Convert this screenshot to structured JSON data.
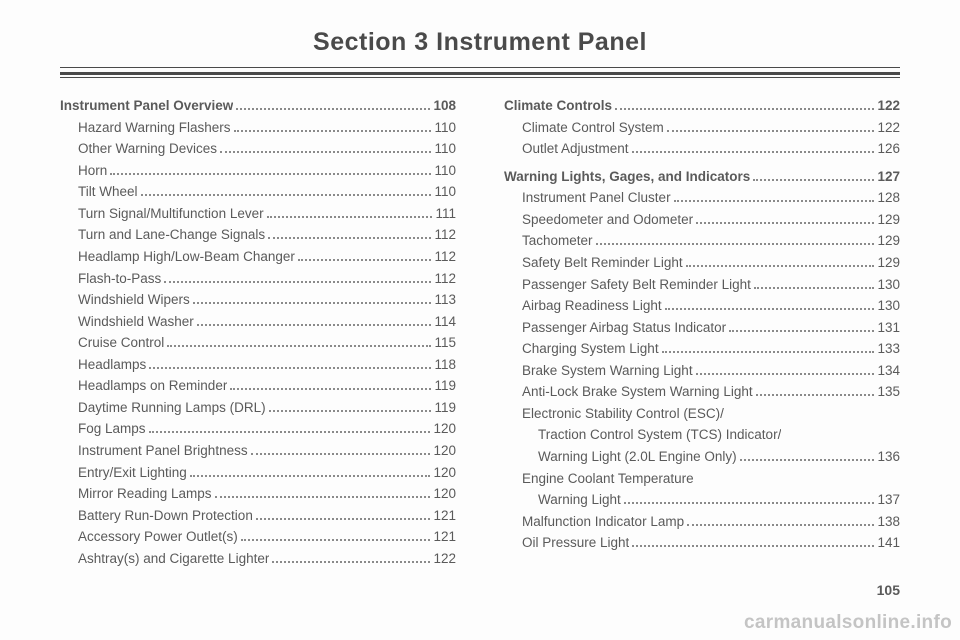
{
  "title": "Section 3    Instrument Panel",
  "pageNumber": "105",
  "watermark": "carmanualsonline.info",
  "left": [
    {
      "label": "Instrument Panel Overview",
      "page": "108",
      "bold": true,
      "indent": 0
    },
    {
      "label": "Hazard Warning Flashers",
      "page": "110",
      "indent": 1
    },
    {
      "label": "Other Warning Devices",
      "page": "110",
      "indent": 1
    },
    {
      "label": "Horn",
      "page": "110",
      "indent": 1
    },
    {
      "label": "Tilt Wheel",
      "page": "110",
      "indent": 1
    },
    {
      "label": "Turn Signal/Multifunction Lever",
      "page": "111",
      "indent": 1
    },
    {
      "label": "Turn and Lane-Change Signals",
      "page": "112",
      "indent": 1
    },
    {
      "label": "Headlamp High/Low-Beam Changer",
      "page": "112",
      "indent": 1
    },
    {
      "label": "Flash-to-Pass",
      "page": "112",
      "indent": 1
    },
    {
      "label": "Windshield Wipers",
      "page": "113",
      "indent": 1
    },
    {
      "label": "Windshield Washer",
      "page": "114",
      "indent": 1
    },
    {
      "label": "Cruise Control",
      "page": "115",
      "indent": 1
    },
    {
      "label": "Headlamps",
      "page": "118",
      "indent": 1
    },
    {
      "label": "Headlamps on Reminder",
      "page": "119",
      "indent": 1
    },
    {
      "label": "Daytime Running Lamps (DRL)",
      "page": "119",
      "indent": 1
    },
    {
      "label": "Fog Lamps",
      "page": "120",
      "indent": 1
    },
    {
      "label": "Instrument Panel Brightness",
      "page": "120",
      "indent": 1
    },
    {
      "label": "Entry/Exit Lighting",
      "page": "120",
      "indent": 1
    },
    {
      "label": "Mirror Reading Lamps",
      "page": "120",
      "indent": 1
    },
    {
      "label": "Battery Run-Down Protection",
      "page": "121",
      "indent": 1
    },
    {
      "label": "Accessory Power Outlet(s)",
      "page": "121",
      "indent": 1
    },
    {
      "label": "Ashtray(s) and Cigarette Lighter",
      "page": "122",
      "indent": 1
    }
  ],
  "right": [
    {
      "label": "Climate Controls",
      "page": "122",
      "bold": true,
      "indent": 0
    },
    {
      "label": "Climate Control System",
      "page": "122",
      "indent": 1
    },
    {
      "label": "Outlet Adjustment",
      "page": "126",
      "indent": 1
    },
    {
      "label": "Warning Lights, Gages, and Indicators",
      "page": "127",
      "bold": true,
      "indent": 0,
      "spaced": true
    },
    {
      "label": "Instrument Panel Cluster",
      "page": "128",
      "indent": 1
    },
    {
      "label": "Speedometer and Odometer",
      "page": "129",
      "indent": 1
    },
    {
      "label": "Tachometer",
      "page": "129",
      "indent": 1
    },
    {
      "label": "Safety Belt Reminder Light",
      "page": "129",
      "indent": 1
    },
    {
      "label": "Passenger Safety Belt Reminder Light",
      "page": "130",
      "indent": 1
    },
    {
      "label": "Airbag Readiness Light",
      "page": "130",
      "indent": 1
    },
    {
      "label": "Passenger Airbag Status Indicator",
      "page": "131",
      "indent": 1
    },
    {
      "label": "Charging System Light",
      "page": "133",
      "indent": 1
    },
    {
      "label": "Brake System Warning Light",
      "page": "134",
      "indent": 1
    },
    {
      "label": "Anti-Lock Brake System Warning Light",
      "page": "135",
      "indent": 1
    },
    {
      "label": "Electronic Stability Control (ESC)/",
      "page": "",
      "indent": 1,
      "nopg": true
    },
    {
      "label": "Traction Control System (TCS) Indicator/",
      "page": "",
      "indent": 2,
      "nopg": true
    },
    {
      "label": "Warning Light (2.0L Engine Only)",
      "page": "136",
      "indent": 2
    },
    {
      "label": "Engine Coolant Temperature",
      "page": "",
      "indent": 1,
      "nopg": true
    },
    {
      "label": "Warning Light",
      "page": "137",
      "indent": 2
    },
    {
      "label": "Malfunction Indicator Lamp",
      "page": "138",
      "indent": 1
    },
    {
      "label": "Oil Pressure Light",
      "page": "141",
      "indent": 1
    }
  ]
}
